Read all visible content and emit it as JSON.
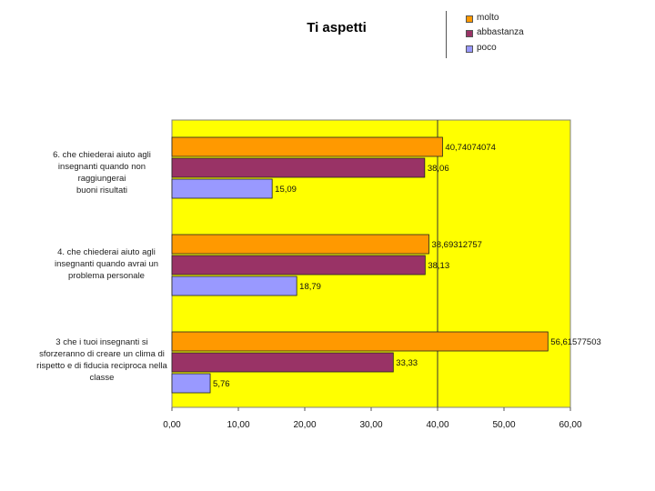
{
  "chart_data": {
    "type": "bar",
    "orientation": "horizontal",
    "title": "Ti aspetti",
    "categories": [
      "6.        che chiederai aiuto agli insegnanti quando non raggiungerai buoni risultati",
      "4.        che chiederai aiuto agli insegnanti quando avrai un problema personale",
      "3 che i tuoi insegnanti si sforzeranno di creare un clima di rispetto e di fiducia reciproca nella classe"
    ],
    "category_lines": [
      [
        "6.        che chiederai aiuto agli",
        "insegnanti quando non raggiungerai",
        "buoni risultati"
      ],
      [
        "4.        che chiederai aiuto agli",
        "insegnanti quando avrai un",
        "problema personale"
      ],
      [
        "3 che i tuoi insegnanti si",
        "sforzeranno di creare un clima di",
        "rispetto e di fiducia reciproca nella",
        "classe"
      ]
    ],
    "series": [
      {
        "name": "molto",
        "color": "#ff9900",
        "values": [
          40.74074074,
          38.69312757,
          56.61577503
        ],
        "labels": [
          "40,74074074",
          "38,69312757",
          "56,61577503"
        ]
      },
      {
        "name": "abbastanza",
        "color": "#993366",
        "values": [
          38.06,
          38.13,
          33.33
        ],
        "labels": [
          "38,06",
          "38,13",
          "33,33"
        ]
      },
      {
        "name": "poco",
        "color": "#9999ff",
        "values": [
          15.09,
          18.79,
          5.76
        ],
        "labels": [
          "15,09",
          "18,79",
          "5,76"
        ]
      }
    ],
    "xlim": [
      0,
      60
    ],
    "xticks": [
      0,
      10,
      20,
      30,
      40,
      50,
      60
    ],
    "xtick_labels": [
      "0,00",
      "10,00",
      "20,00",
      "30,00",
      "40,00",
      "50,00",
      "60,00"
    ],
    "reference_line": 40,
    "plot_background": "#ffff00",
    "legend_position": "top-right",
    "xlabel": "",
    "ylabel": ""
  }
}
